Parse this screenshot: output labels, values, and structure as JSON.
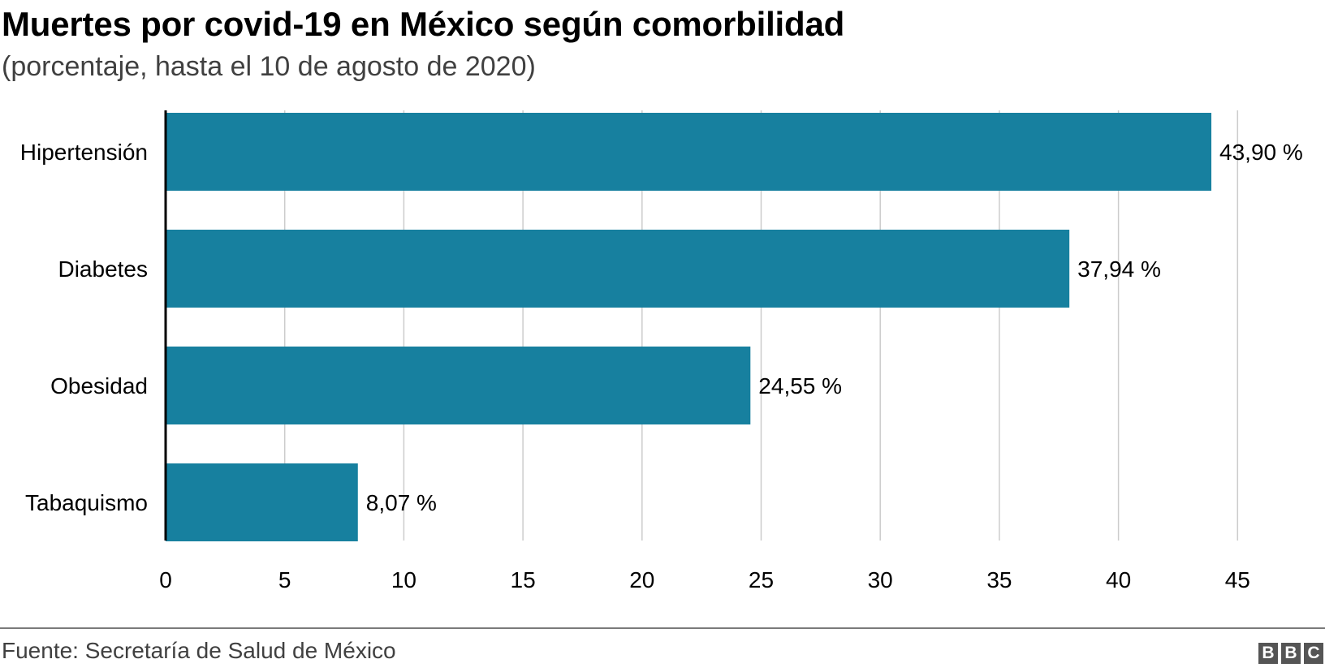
{
  "title": "Muertes por covid-19 en México según comorbilidad",
  "subtitle": "(porcentaje, hasta el 10 de agosto de 2020)",
  "source": "Fuente: Secretaría de Salud de México",
  "logo": [
    "B",
    "B",
    "C"
  ],
  "colors": {
    "bar": "#17809f",
    "grid": "#cccccc",
    "axis": "#000000",
    "text": "#000000",
    "muted": "#404040"
  },
  "chart_data": {
    "type": "bar",
    "orientation": "horizontal",
    "categories": [
      "Hipertensión",
      "Diabetes",
      "Obesidad",
      "Tabaquismo"
    ],
    "values": [
      43.9,
      37.94,
      24.55,
      8.07
    ],
    "value_labels": [
      "43,90 %",
      "37,94 %",
      "24,55 %",
      "8,07 %"
    ],
    "xlim": [
      0,
      45
    ],
    "xticks": [
      0,
      5,
      10,
      15,
      20,
      25,
      30,
      35,
      40,
      45
    ],
    "grid": true,
    "legend": "none"
  }
}
